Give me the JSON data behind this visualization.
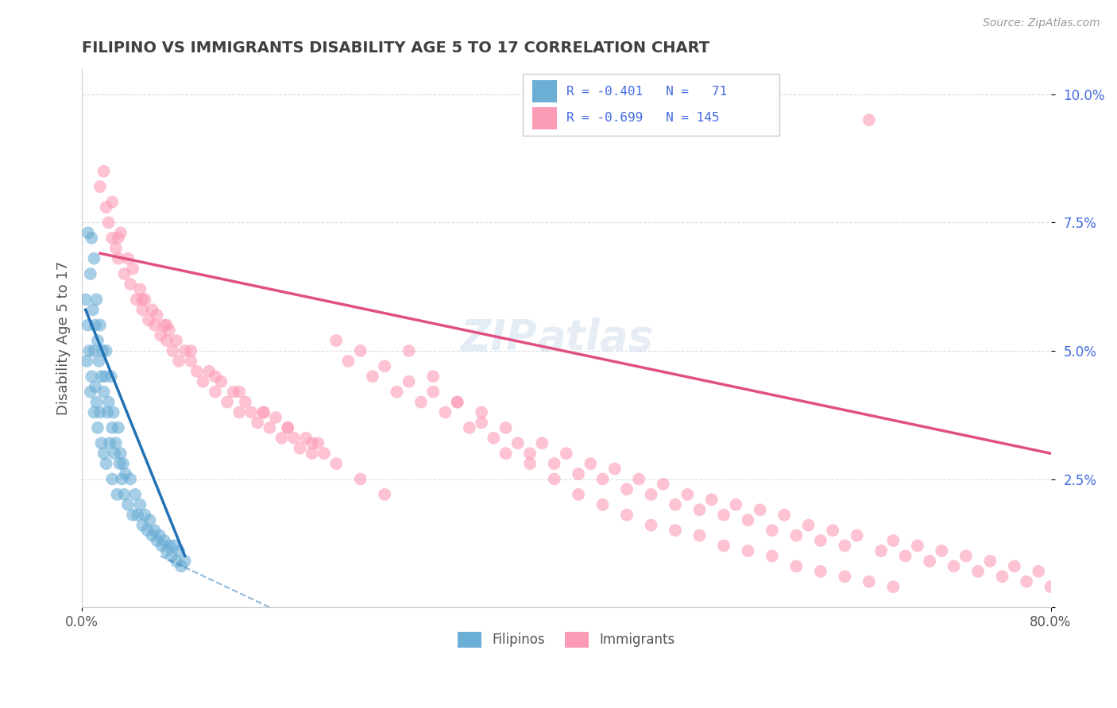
{
  "title": "FILIPINO VS IMMIGRANTS DISABILITY AGE 5 TO 17 CORRELATION CHART",
  "source": "Source: ZipAtlas.com",
  "ylabel": "Disability Age 5 to 17",
  "legend_label1": "Filipinos",
  "legend_label2": "Immigrants",
  "filipinos_color": "#6baed6",
  "immigrants_color": "#fc9bb6",
  "filipinos_trend_color": "#2171b5",
  "immigrants_trend_color": "#e05080",
  "title_color": "#404040",
  "stats_color": "#4169E1",
  "background_color": "#ffffff",
  "grid_color": "#d8dde8",
  "xlim": [
    0.0,
    0.8
  ],
  "ylim": [
    0.0,
    0.105
  ],
  "filipinos_x": [
    0.003,
    0.004,
    0.005,
    0.005,
    0.006,
    0.007,
    0.007,
    0.008,
    0.008,
    0.009,
    0.01,
    0.01,
    0.01,
    0.011,
    0.011,
    0.012,
    0.012,
    0.013,
    0.013,
    0.014,
    0.015,
    0.015,
    0.016,
    0.016,
    0.017,
    0.018,
    0.018,
    0.019,
    0.02,
    0.02,
    0.021,
    0.022,
    0.023,
    0.024,
    0.025,
    0.025,
    0.026,
    0.027,
    0.028,
    0.029,
    0.03,
    0.031,
    0.032,
    0.033,
    0.034,
    0.035,
    0.036,
    0.038,
    0.04,
    0.042,
    0.044,
    0.046,
    0.048,
    0.05,
    0.052,
    0.054,
    0.056,
    0.058,
    0.06,
    0.062,
    0.064,
    0.066,
    0.068,
    0.07,
    0.072,
    0.074,
    0.076,
    0.078,
    0.08,
    0.082,
    0.085
  ],
  "filipinos_y": [
    0.06,
    0.048,
    0.073,
    0.055,
    0.05,
    0.065,
    0.042,
    0.072,
    0.045,
    0.058,
    0.068,
    0.05,
    0.038,
    0.055,
    0.043,
    0.06,
    0.04,
    0.052,
    0.035,
    0.048,
    0.055,
    0.038,
    0.045,
    0.032,
    0.05,
    0.042,
    0.03,
    0.045,
    0.05,
    0.028,
    0.038,
    0.04,
    0.032,
    0.045,
    0.035,
    0.025,
    0.038,
    0.03,
    0.032,
    0.022,
    0.035,
    0.028,
    0.03,
    0.025,
    0.028,
    0.022,
    0.026,
    0.02,
    0.025,
    0.018,
    0.022,
    0.018,
    0.02,
    0.016,
    0.018,
    0.015,
    0.017,
    0.014,
    0.015,
    0.013,
    0.014,
    0.012,
    0.013,
    0.011,
    0.012,
    0.01,
    0.012,
    0.009,
    0.011,
    0.008,
    0.009
  ],
  "immigrants_x": [
    0.015,
    0.018,
    0.02,
    0.022,
    0.025,
    0.025,
    0.028,
    0.03,
    0.032,
    0.035,
    0.038,
    0.04,
    0.042,
    0.045,
    0.048,
    0.05,
    0.052,
    0.055,
    0.058,
    0.06,
    0.062,
    0.065,
    0.068,
    0.07,
    0.072,
    0.075,
    0.078,
    0.08,
    0.085,
    0.09,
    0.095,
    0.1,
    0.105,
    0.11,
    0.115,
    0.12,
    0.125,
    0.13,
    0.135,
    0.14,
    0.145,
    0.15,
    0.155,
    0.16,
    0.165,
    0.17,
    0.175,
    0.18,
    0.185,
    0.19,
    0.195,
    0.2,
    0.21,
    0.22,
    0.23,
    0.24,
    0.25,
    0.26,
    0.27,
    0.28,
    0.29,
    0.3,
    0.31,
    0.32,
    0.33,
    0.34,
    0.35,
    0.36,
    0.37,
    0.38,
    0.39,
    0.4,
    0.41,
    0.42,
    0.43,
    0.44,
    0.45,
    0.46,
    0.47,
    0.48,
    0.49,
    0.5,
    0.51,
    0.52,
    0.53,
    0.54,
    0.55,
    0.56,
    0.57,
    0.58,
    0.59,
    0.6,
    0.61,
    0.62,
    0.63,
    0.64,
    0.65,
    0.66,
    0.67,
    0.68,
    0.69,
    0.7,
    0.71,
    0.72,
    0.73,
    0.74,
    0.75,
    0.76,
    0.77,
    0.78,
    0.79,
    0.8,
    0.03,
    0.05,
    0.07,
    0.09,
    0.11,
    0.13,
    0.15,
    0.17,
    0.19,
    0.21,
    0.23,
    0.25,
    0.27,
    0.29,
    0.31,
    0.33,
    0.35,
    0.37,
    0.39,
    0.41,
    0.43,
    0.45,
    0.47,
    0.49,
    0.51,
    0.53,
    0.55,
    0.57,
    0.59,
    0.61,
    0.63,
    0.65,
    0.67
  ],
  "immigrants_y": [
    0.082,
    0.085,
    0.078,
    0.075,
    0.079,
    0.072,
    0.07,
    0.068,
    0.073,
    0.065,
    0.068,
    0.063,
    0.066,
    0.06,
    0.062,
    0.058,
    0.06,
    0.056,
    0.058,
    0.055,
    0.057,
    0.053,
    0.055,
    0.052,
    0.054,
    0.05,
    0.052,
    0.048,
    0.05,
    0.048,
    0.046,
    0.044,
    0.046,
    0.042,
    0.044,
    0.04,
    0.042,
    0.038,
    0.04,
    0.038,
    0.036,
    0.038,
    0.035,
    0.037,
    0.033,
    0.035,
    0.033,
    0.031,
    0.033,
    0.03,
    0.032,
    0.03,
    0.052,
    0.048,
    0.05,
    0.045,
    0.047,
    0.042,
    0.044,
    0.04,
    0.042,
    0.038,
    0.04,
    0.035,
    0.038,
    0.033,
    0.035,
    0.032,
    0.03,
    0.032,
    0.028,
    0.03,
    0.026,
    0.028,
    0.025,
    0.027,
    0.023,
    0.025,
    0.022,
    0.024,
    0.02,
    0.022,
    0.019,
    0.021,
    0.018,
    0.02,
    0.017,
    0.019,
    0.015,
    0.018,
    0.014,
    0.016,
    0.013,
    0.015,
    0.012,
    0.014,
    0.095,
    0.011,
    0.013,
    0.01,
    0.012,
    0.009,
    0.011,
    0.008,
    0.01,
    0.007,
    0.009,
    0.006,
    0.008,
    0.005,
    0.007,
    0.004,
    0.072,
    0.06,
    0.055,
    0.05,
    0.045,
    0.042,
    0.038,
    0.035,
    0.032,
    0.028,
    0.025,
    0.022,
    0.05,
    0.045,
    0.04,
    0.036,
    0.03,
    0.028,
    0.025,
    0.022,
    0.02,
    0.018,
    0.016,
    0.015,
    0.014,
    0.012,
    0.011,
    0.01,
    0.008,
    0.007,
    0.006,
    0.005,
    0.004
  ],
  "fil_trend_x": [
    0.003,
    0.085
  ],
  "fil_trend_y": [
    0.058,
    0.01
  ],
  "imm_trend_x": [
    0.015,
    0.8
  ],
  "imm_trend_y": [
    0.069,
    0.03
  ]
}
